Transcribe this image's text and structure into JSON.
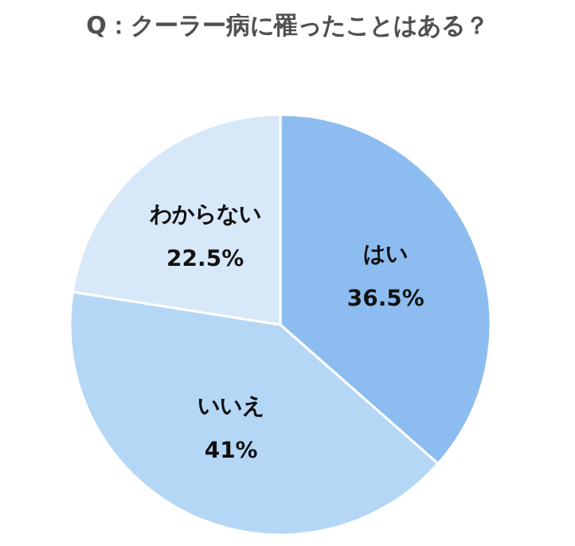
{
  "chart_data": {
    "type": "pie",
    "title": "Q：クーラー病に罹ったことはある？",
    "categories": [
      "はい",
      "いいえ",
      "わからない"
    ],
    "values": [
      36.5,
      41,
      22.5
    ],
    "value_labels": [
      "36.5%",
      "41%",
      "22.5%"
    ],
    "colors": [
      "#8dbdf0",
      "#b5d7f6",
      "#d7e8f8"
    ]
  }
}
